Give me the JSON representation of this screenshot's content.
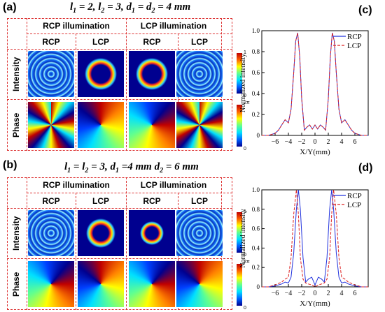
{
  "panel_a": {
    "label": "(a)",
    "condition": "l1 = 2, l2 = 3, d1 = d2 = 4 mm",
    "cond_parts": {
      "l1": "l",
      "s1": "1",
      "eq1": " = 2, ",
      "l2": "l",
      "s2": "2",
      "eq2": " = 3, ",
      "d1": "d",
      "s3": "1",
      "eq3": " = ",
      "d2": "d",
      "s4": "2",
      "eq4": " = 4 mm"
    },
    "header_rcp_illum": "RCP illumination",
    "header_lcp_illum": "LCP illumination",
    "sub_headers": [
      "RCP",
      "LCP",
      "RCP",
      "LCP"
    ],
    "row_intensity": "Intensity",
    "row_phase": "Phase",
    "cbar_intensity_max": "1",
    "cbar_intensity_min": "0",
    "cbar_phase_max": "2π",
    "cbar_phase_min": "0"
  },
  "panel_b": {
    "label": "(b)",
    "cond_parts": {
      "l1": "l",
      "s1": "1",
      "eq1": " = ",
      "l2": "l",
      "s2": "2",
      "eq2": " = 3, ",
      "d1": "d",
      "s3": "1",
      "eq3": " =4 mm ",
      "d2": "d",
      "s4": "2",
      "eq4": " = 6 mm"
    },
    "header_rcp_illum": "RCP illumination",
    "header_lcp_illum": "LCP illumination",
    "sub_headers": [
      "RCP",
      "LCP",
      "RCP",
      "LCP"
    ],
    "row_intensity": "Intensity",
    "row_phase": "Phase",
    "cbar_intensity_max": "1",
    "cbar_intensity_min": "0",
    "cbar_phase_max": "2π",
    "cbar_phase_min": "0"
  },
  "panel_c": {
    "label": "(c)"
  },
  "panel_d": {
    "label": "(d)"
  },
  "colors": {
    "rcp": "#2233dd",
    "lcp": "#dd2222",
    "grid": "#dd3333"
  },
  "chart_data": [
    {
      "id": "c",
      "type": "line",
      "xlabel": "X/Y(mm)",
      "ylabel": "Normalized intensity",
      "xlim": [
        -8,
        8
      ],
      "ylim": [
        0,
        1.0
      ],
      "xticks": [
        -6,
        -4,
        -2,
        0,
        2,
        4,
        6
      ],
      "yticks": [
        0,
        0.2,
        0.4,
        0.6,
        0.8,
        1.0
      ],
      "ytick_labels": [
        "0",
        "0.2",
        "0.4",
        "0.6",
        "0.8",
        "1.0"
      ],
      "legend": "top-right",
      "series": [
        {
          "name": "RCP",
          "x": [
            -8,
            -7,
            -6,
            -5.5,
            -5,
            -4.5,
            -4,
            -3.6,
            -3.2,
            -2.9,
            -2.6,
            -2.3,
            -2.0,
            -1.6,
            -1.2,
            -0.8,
            -0.4,
            0,
            0.4,
            0.8,
            1.2,
            1.6,
            2.0,
            2.3,
            2.6,
            2.9,
            3.2,
            3.6,
            4,
            4.5,
            5,
            5.5,
            6,
            7,
            8
          ],
          "y": [
            0,
            0,
            0.02,
            0.05,
            0.1,
            0.15,
            0.12,
            0.25,
            0.6,
            0.9,
            0.98,
            0.75,
            0.35,
            0.05,
            0.08,
            0.1,
            0.06,
            0.1,
            0.06,
            0.1,
            0.08,
            0.05,
            0.35,
            0.75,
            0.98,
            0.9,
            0.6,
            0.25,
            0.12,
            0.15,
            0.1,
            0.05,
            0.02,
            0,
            0
          ]
        },
        {
          "name": "LCP",
          "x": [
            -8,
            -7,
            -6,
            -5.5,
            -5,
            -4.5,
            -4,
            -3.6,
            -3.2,
            -2.9,
            -2.6,
            -2.3,
            -2.0,
            -1.6,
            -1.2,
            -0.8,
            -0.4,
            0,
            0.4,
            0.8,
            1.2,
            1.6,
            2.0,
            2.3,
            2.6,
            2.9,
            3.2,
            3.6,
            4,
            4.5,
            5,
            5.5,
            6,
            7,
            8
          ],
          "y": [
            0,
            0,
            0.02,
            0.05,
            0.1,
            0.15,
            0.12,
            0.25,
            0.6,
            0.9,
            0.98,
            0.75,
            0.35,
            0.05,
            0.08,
            0.1,
            0.06,
            0.1,
            0.06,
            0.1,
            0.08,
            0.05,
            0.35,
            0.75,
            0.98,
            0.9,
            0.6,
            0.25,
            0.12,
            0.15,
            0.1,
            0.05,
            0.02,
            0,
            0
          ]
        }
      ]
    },
    {
      "id": "d",
      "type": "line",
      "xlabel": "X/Y(mm)",
      "ylabel": "Normalized intensity",
      "xlim": [
        -8,
        8
      ],
      "ylim": [
        0,
        1.0
      ],
      "xticks": [
        -6,
        -4,
        -2,
        0,
        2,
        4,
        6
      ],
      "yticks": [
        0,
        0.2,
        0.4,
        0.6,
        0.8,
        1.0
      ],
      "ytick_labels": [
        "0",
        "0.2",
        "0.4",
        "0.6",
        "0.8",
        "1.0"
      ],
      "legend": "top-right",
      "series": [
        {
          "name": "RCP",
          "x": [
            -8,
            -7,
            -6,
            -5,
            -4.5,
            -4,
            -3.6,
            -3.2,
            -2.8,
            -2.5,
            -2.2,
            -1.8,
            -1.4,
            -1,
            -0.5,
            0,
            0.5,
            1,
            1.4,
            1.8,
            2.2,
            2.5,
            2.8,
            3.2,
            3.6,
            4,
            4.5,
            5,
            6,
            7,
            8
          ],
          "y": [
            0,
            0,
            0.01,
            0.03,
            0.05,
            0.04,
            0.1,
            0.35,
            0.8,
            1.0,
            0.8,
            0.3,
            0.05,
            0.08,
            0.1,
            0.02,
            0.1,
            0.08,
            0.05,
            0.3,
            0.8,
            1.0,
            0.8,
            0.35,
            0.1,
            0.04,
            0.05,
            0.03,
            0.01,
            0,
            0
          ]
        },
        {
          "name": "LCP",
          "x": [
            -8,
            -7,
            -6,
            -5,
            -4.5,
            -4,
            -3.6,
            -3.2,
            -2.8,
            -2.5,
            -2.2,
            -1.8,
            -1.4,
            -1,
            -0.5,
            0,
            0.5,
            1,
            1.4,
            1.8,
            2.2,
            2.5,
            2.8,
            3.2,
            3.6,
            4,
            4.5,
            5,
            6,
            7,
            8
          ],
          "y": [
            0,
            0,
            0.02,
            0.05,
            0.08,
            0.1,
            0.3,
            0.75,
            1.0,
            0.75,
            0.3,
            0.08,
            0.04,
            0.03,
            0.02,
            0,
            0.02,
            0.03,
            0.04,
            0.08,
            0.3,
            0.75,
            1.0,
            0.75,
            0.3,
            0.1,
            0.08,
            0.05,
            0.02,
            0,
            0
          ]
        }
      ]
    }
  ]
}
